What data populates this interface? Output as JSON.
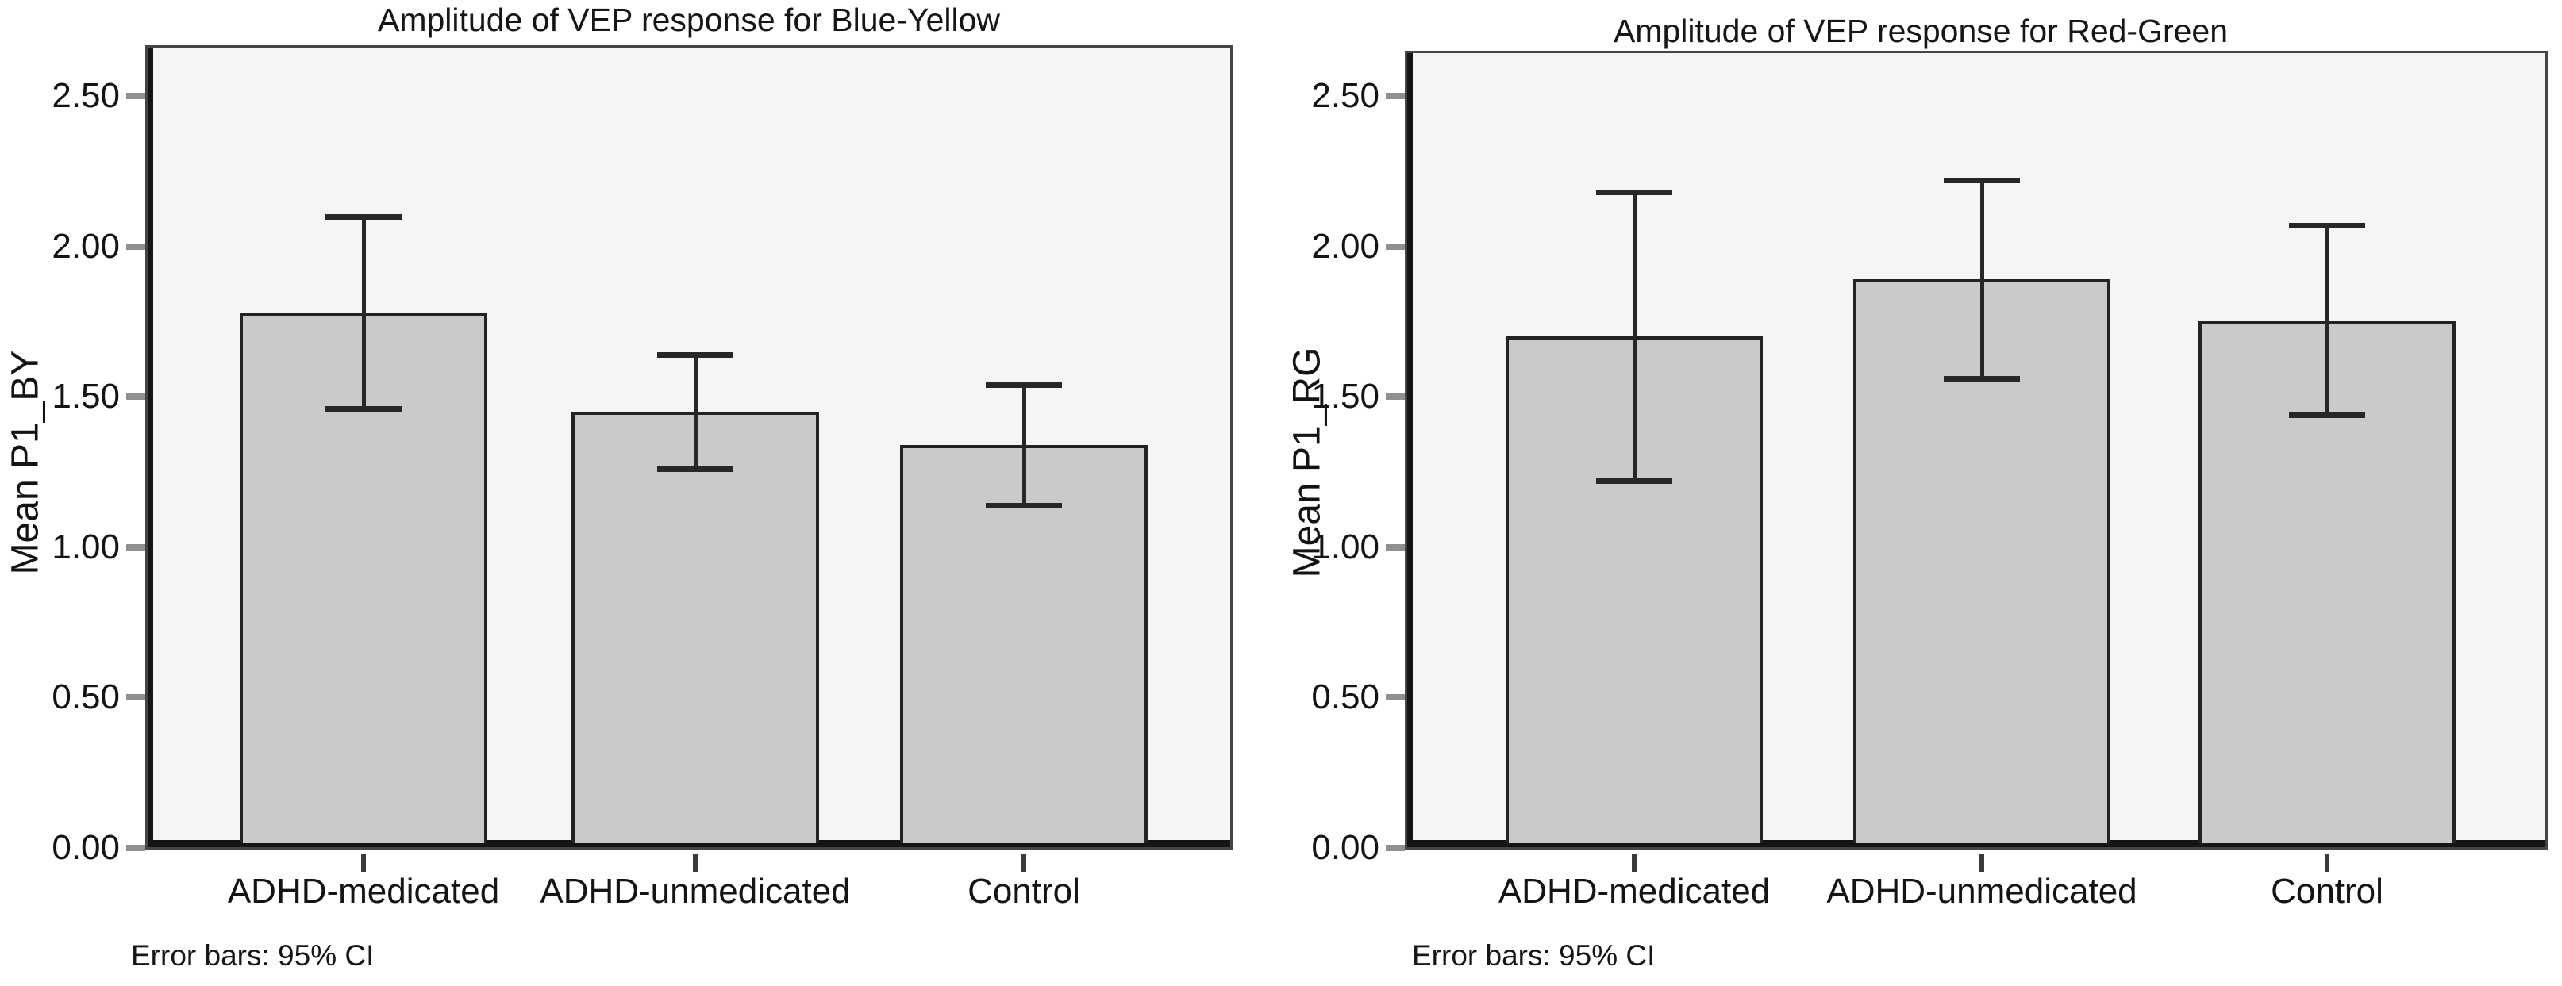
{
  "figure": {
    "background": "#ffffff",
    "description_colors": {
      "plot_background": "#f4f5f4",
      "bar_fill": "#c9cacc",
      "bar_border": "#232323",
      "axis_color": "#151515",
      "frame_color": "#454545",
      "error_bar_color": "#272727",
      "text_color": "#161616"
    }
  },
  "chart_data": [
    {
      "type": "bar",
      "title": "Amplitude of VEP response for Blue-Yellow",
      "xlabel": "",
      "ylabel": "Mean P1_BY",
      "footnote": "Error bars: 95% CI",
      "categories": [
        "ADHD-medicated",
        "ADHD-unmedicated",
        "Control"
      ],
      "values": [
        1.78,
        1.45,
        1.34
      ],
      "error_low": [
        1.46,
        1.26,
        1.14
      ],
      "error_high": [
        2.1,
        1.64,
        1.54
      ],
      "ylim": [
        0,
        2.67
      ],
      "y_tick_step": 0.5,
      "y_tick_labels": [
        "0.00",
        "0.50",
        "1.00",
        "1.50",
        "2.00",
        "2.50"
      ],
      "grid": false,
      "legend": "none",
      "error_bar_style": "95% CI caps"
    },
    {
      "type": "bar",
      "title": "Amplitude of VEP response for Red-Green",
      "xlabel": "",
      "ylabel": "Mean P1_RG",
      "footnote": "Error bars: 95% CI",
      "categories": [
        "ADHD-medicated",
        "ADHD-unmedicated",
        "Control"
      ],
      "values": [
        1.7,
        1.89,
        1.75
      ],
      "error_low": [
        1.22,
        1.56,
        1.44
      ],
      "error_high": [
        2.18,
        2.22,
        2.07
      ],
      "ylim": [
        0,
        2.67
      ],
      "y_tick_step": 0.5,
      "y_tick_labels": [
        "0.00",
        "0.50",
        "1.00",
        "1.50",
        "2.00",
        "2.50"
      ],
      "grid": false,
      "legend": "none",
      "error_bar_style": "95% CI caps"
    }
  ]
}
